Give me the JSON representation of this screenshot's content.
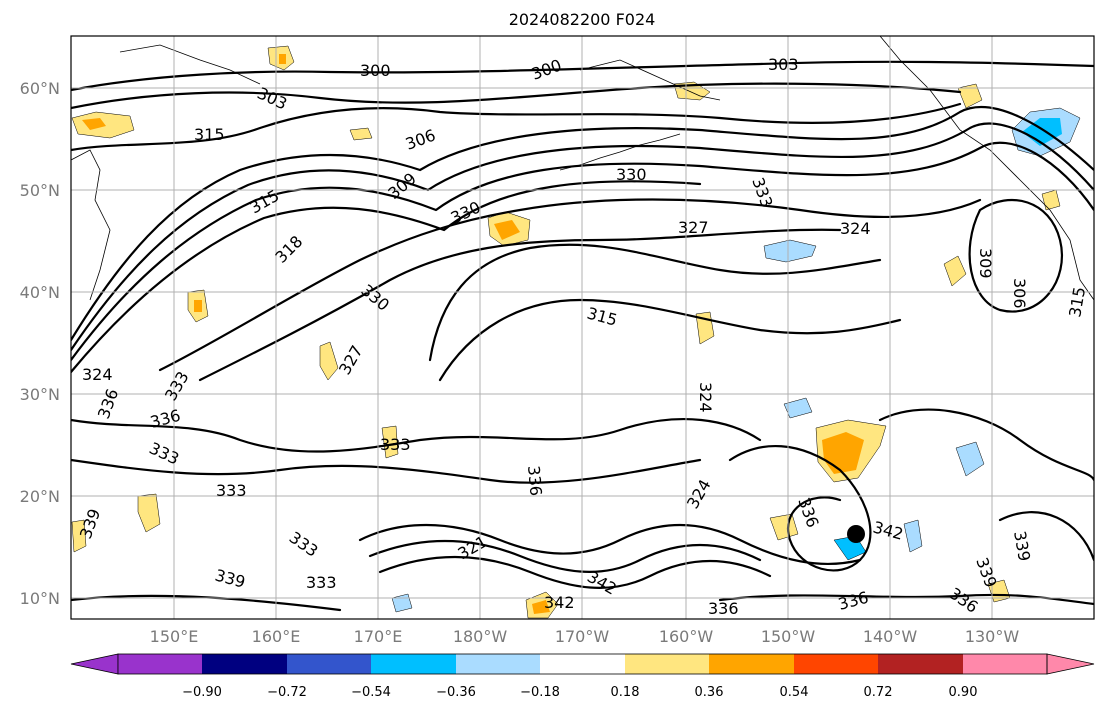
{
  "title": "2024082200 F024",
  "map": {
    "lat_labels": [
      "60°N",
      "50°N",
      "40°N",
      "30°N",
      "20°N",
      "10°N"
    ],
    "lon_labels": [
      "150°E",
      "160°E",
      "170°E",
      "180°W",
      "170°W",
      "160°W",
      "150°W",
      "140°W",
      "130°W"
    ],
    "contour_labels": [
      "303",
      "300",
      "300",
      "303",
      "315",
      "306",
      "315",
      "309",
      "330",
      "330",
      "333",
      "327",
      "324",
      "318",
      "330",
      "315",
      "327",
      "324",
      "336",
      "333",
      "333",
      "333",
      "336",
      "339",
      "333",
      "333",
      "339",
      "342",
      "342",
      "336",
      "333",
      "339",
      "342",
      "336",
      "324",
      "324",
      "306",
      "309",
      "315",
      "336",
      "339",
      "336",
      "336",
      "321"
    ],
    "marker": "storm-center-marker"
  },
  "colorbar": {
    "ticks": [
      "−0.90",
      "−0.72",
      "−0.54",
      "−0.36",
      "−0.18",
      "0.18",
      "0.36",
      "0.54",
      "0.72",
      "0.90"
    ],
    "colors": [
      "#9933cc",
      "#000080",
      "#3355cc",
      "#00bfff",
      "#aadcff",
      "#ffffff",
      "#ffe680",
      "#ffa500",
      "#ff4500",
      "#b22222",
      "#ff88aa"
    ]
  }
}
